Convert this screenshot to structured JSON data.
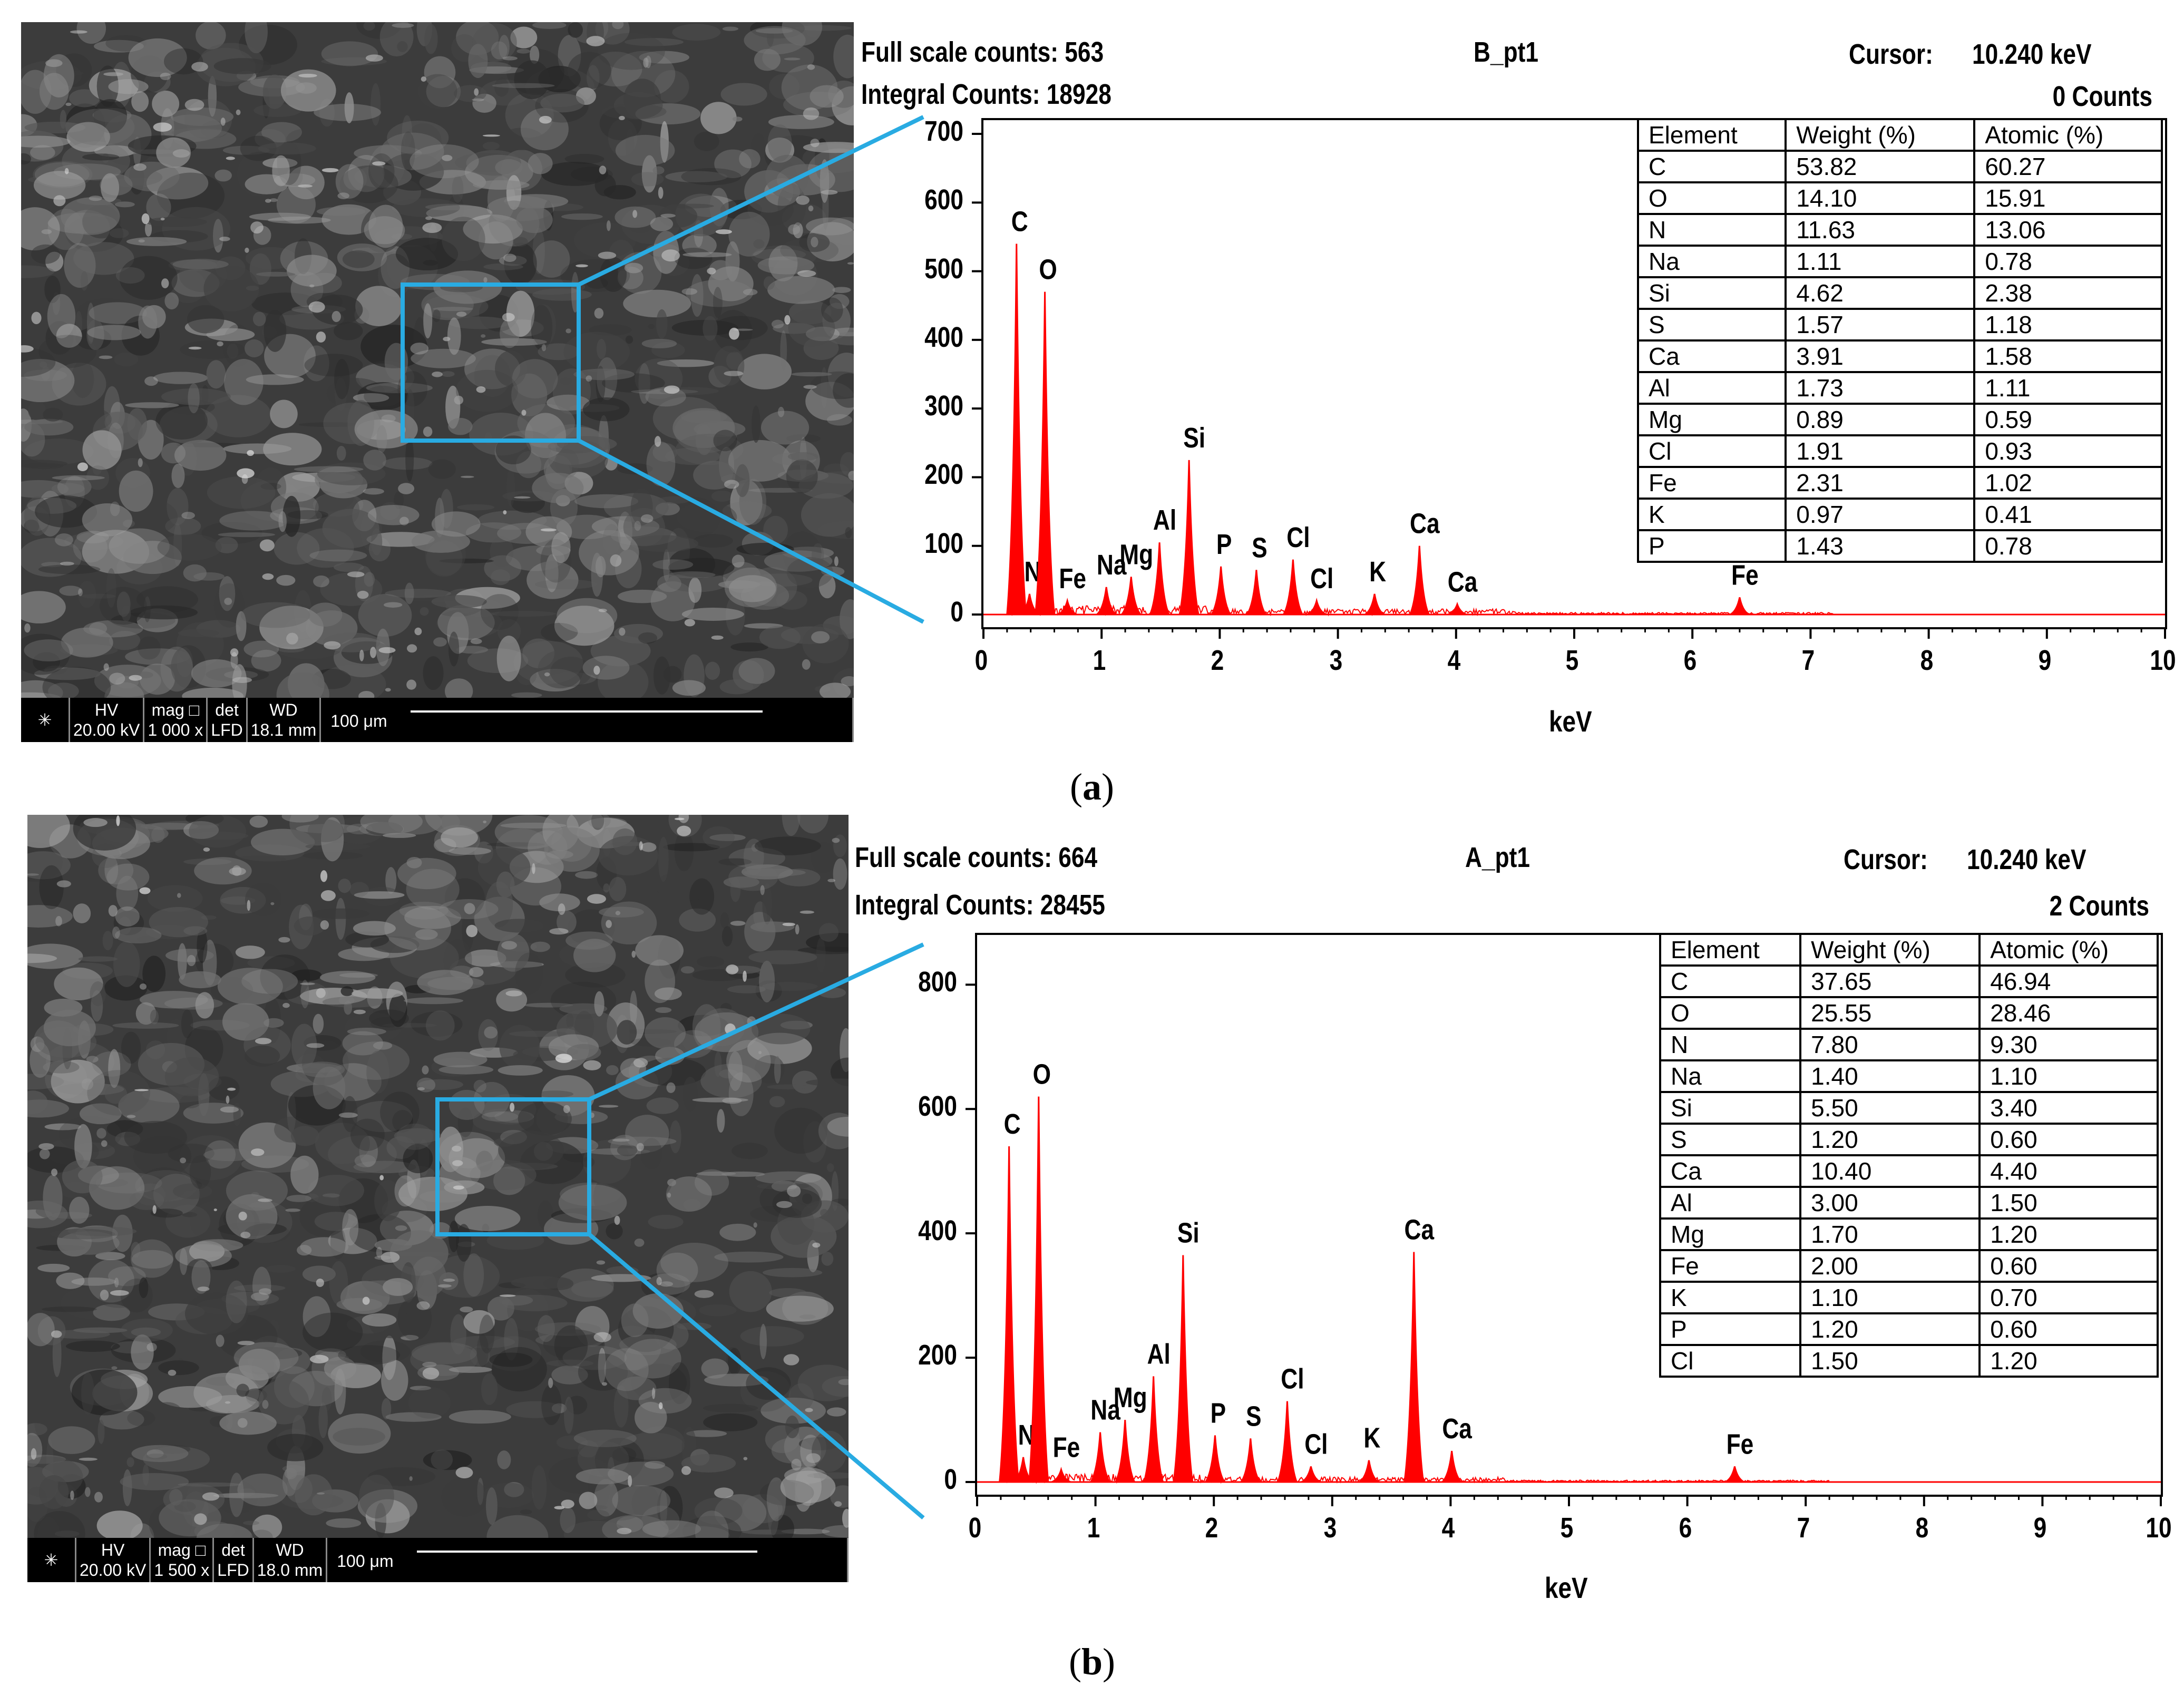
{
  "colors": {
    "spectrum": "#ff0000",
    "callout": "#29abe2",
    "frame": "#000000"
  },
  "panels": [
    {
      "id": "a",
      "caption_letter": "a",
      "sem": {
        "hv_label": "HV",
        "hv_value": "20.00 kV",
        "mag_label": "mag □",
        "mag_value": "1 000 x",
        "det_label": "det",
        "det_value": "LFD",
        "wd_label": "WD",
        "wd_value": "18.1 mm",
        "scale_label": "100 μm"
      },
      "header": {
        "full_scale": "Full scale counts: 563",
        "integral": "Integral Counts: 18928",
        "sample": "B_pt1",
        "cursor_label": "Cursor:",
        "cursor_value": "10.240 keV",
        "cursor_counts": "0 Counts"
      },
      "chart_data": {
        "type": "line",
        "xlabel": "keV",
        "ylabel": "",
        "xlim": [
          0,
          10
        ],
        "ylim": [
          0,
          720
        ],
        "x_ticks": [
          "0",
          "1",
          "2",
          "3",
          "4",
          "5",
          "6",
          "7",
          "8",
          "9",
          "10"
        ],
        "y_ticks": [
          "0",
          "100",
          "200",
          "300",
          "400",
          "500",
          "600",
          "700"
        ],
        "peaks": [
          {
            "label": "C",
            "x": 0.28,
            "y": 540
          },
          {
            "label": "N",
            "x": 0.39,
            "y": 30
          },
          {
            "label": "O",
            "x": 0.52,
            "y": 470
          },
          {
            "label": "Fe",
            "x": 0.71,
            "y": 20
          },
          {
            "label": "Na",
            "x": 1.04,
            "y": 40
          },
          {
            "label": "Mg",
            "x": 1.25,
            "y": 55
          },
          {
            "label": "Al",
            "x": 1.49,
            "y": 105
          },
          {
            "label": "Si",
            "x": 1.74,
            "y": 225
          },
          {
            "label": "P",
            "x": 2.01,
            "y": 70
          },
          {
            "label": "S",
            "x": 2.31,
            "y": 65
          },
          {
            "label": "Cl",
            "x": 2.62,
            "y": 80
          },
          {
            "label": "Cl",
            "x": 2.82,
            "y": 20
          },
          {
            "label": "K",
            "x": 3.31,
            "y": 30
          },
          {
            "label": "Ca",
            "x": 3.69,
            "y": 100
          },
          {
            "label": "Ca",
            "x": 4.01,
            "y": 15
          },
          {
            "label": "Fe",
            "x": 6.4,
            "y": 25
          }
        ]
      },
      "table": {
        "headers": [
          "Element",
          "Weight (%)",
          "Atomic (%)"
        ],
        "rows": [
          [
            "C",
            "53.82",
            "60.27"
          ],
          [
            "O",
            "14.10",
            "15.91"
          ],
          [
            "N",
            "11.63",
            "13.06"
          ],
          [
            "Na",
            "1.11",
            "0.78"
          ],
          [
            "Si",
            "4.62",
            "2.38"
          ],
          [
            "S",
            "1.57",
            "1.18"
          ],
          [
            "Ca",
            "3.91",
            "1.58"
          ],
          [
            "Al",
            "1.73",
            "1.11"
          ],
          [
            "Mg",
            "0.89",
            "0.59"
          ],
          [
            "Cl",
            "1.91",
            "0.93"
          ],
          [
            "Fe",
            "2.31",
            "1.02"
          ],
          [
            "K",
            "0.97",
            "0.41"
          ],
          [
            "P",
            "1.43",
            "0.78"
          ]
        ]
      }
    },
    {
      "id": "b",
      "caption_letter": "b",
      "sem": {
        "hv_label": "HV",
        "hv_value": "20.00 kV",
        "mag_label": "mag □",
        "mag_value": "1 500 x",
        "det_label": "det",
        "det_value": "LFD",
        "wd_label": "WD",
        "wd_value": "18.0 mm",
        "scale_label": "100 μm"
      },
      "header": {
        "full_scale": "Full scale counts: 664",
        "integral": "Integral Counts: 28455",
        "sample": "A_pt1",
        "cursor_label": "Cursor:",
        "cursor_value": "10.240 keV",
        "cursor_counts": "2 Counts"
      },
      "chart_data": {
        "type": "line",
        "xlabel": "keV",
        "ylabel": "",
        "xlim": [
          0,
          10
        ],
        "ylim": [
          0,
          880
        ],
        "x_ticks": [
          "0",
          "1",
          "2",
          "3",
          "4",
          "5",
          "6",
          "7",
          "8",
          "9",
          "10"
        ],
        "y_ticks": [
          "0",
          "200",
          "400",
          "600",
          "800"
        ],
        "peaks": [
          {
            "label": "C",
            "x": 0.27,
            "y": 540
          },
          {
            "label": "N",
            "x": 0.39,
            "y": 40
          },
          {
            "label": "O",
            "x": 0.52,
            "y": 620
          },
          {
            "label": "Fe",
            "x": 0.71,
            "y": 20
          },
          {
            "label": "Na",
            "x": 1.04,
            "y": 80
          },
          {
            "label": "Mg",
            "x": 1.25,
            "y": 100
          },
          {
            "label": "Al",
            "x": 1.49,
            "y": 170
          },
          {
            "label": "Si",
            "x": 1.74,
            "y": 365
          },
          {
            "label": "P",
            "x": 2.01,
            "y": 75
          },
          {
            "label": "S",
            "x": 2.31,
            "y": 70
          },
          {
            "label": "Cl",
            "x": 2.62,
            "y": 130
          },
          {
            "label": "Cl",
            "x": 2.82,
            "y": 25
          },
          {
            "label": "K",
            "x": 3.31,
            "y": 35
          },
          {
            "label": "Ca",
            "x": 3.69,
            "y": 370
          },
          {
            "label": "Ca",
            "x": 4.01,
            "y": 50
          },
          {
            "label": "Fe",
            "x": 6.4,
            "y": 25
          }
        ]
      },
      "table": {
        "headers": [
          "Element",
          "Weight (%)",
          "Atomic (%)"
        ],
        "rows": [
          [
            "C",
            "37.65",
            "46.94"
          ],
          [
            "O",
            "25.55",
            "28.46"
          ],
          [
            "N",
            "7.80",
            "9.30"
          ],
          [
            "Na",
            "1.40",
            "1.10"
          ],
          [
            "Si",
            "5.50",
            "3.40"
          ],
          [
            "S",
            "1.20",
            "0.60"
          ],
          [
            "Ca",
            "10.40",
            "4.40"
          ],
          [
            "Al",
            "3.00",
            "1.50"
          ],
          [
            "Mg",
            "1.70",
            "1.20"
          ],
          [
            "Fe",
            "2.00",
            "0.60"
          ],
          [
            "K",
            "1.10",
            "0.70"
          ],
          [
            "P",
            "1.20",
            "0.60"
          ],
          [
            "Cl",
            "1.50",
            "1.20"
          ]
        ]
      }
    }
  ]
}
